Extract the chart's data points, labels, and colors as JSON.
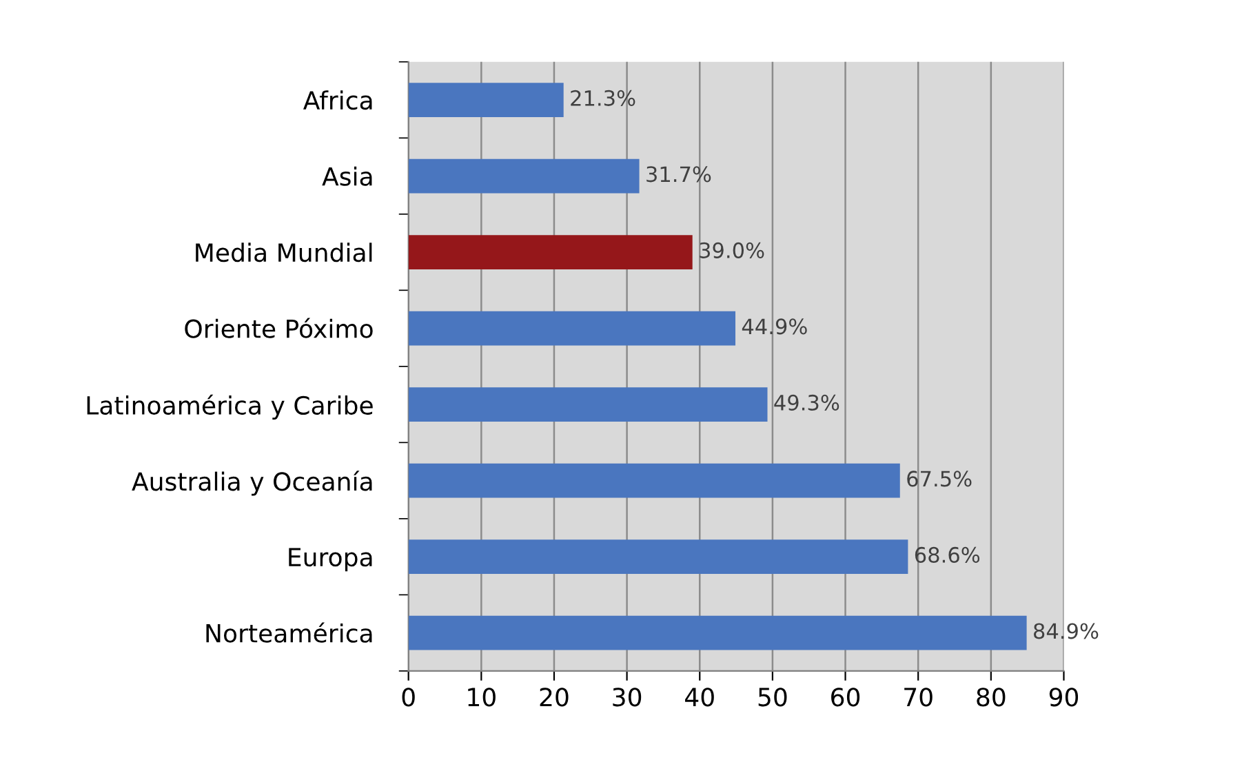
{
  "chart_data": {
    "type": "bar",
    "orientation": "horizontal",
    "categories": [
      "Africa",
      "Asia",
      "Media Mundial",
      "Oriente Póximo",
      "Latinoamérica y Caribe",
      "Australia y Oceanía",
      "Europa",
      "Norteamérica"
    ],
    "values": [
      21.3,
      31.7,
      39.0,
      44.9,
      49.3,
      67.5,
      68.6,
      84.9
    ],
    "value_labels": [
      "21.3%",
      "31.7%",
      "39.0%",
      "44.9%",
      "49.3%",
      "67.5%",
      "68.6%",
      "84.9%"
    ],
    "colors": [
      "#4a76bf",
      "#4a76bf",
      "#95171a",
      "#4a76bf",
      "#4a76bf",
      "#4a76bf",
      "#4a76bf",
      "#4a76bf"
    ],
    "xlim": [
      0,
      90
    ],
    "xticks": [
      0,
      10,
      20,
      30,
      40,
      50,
      60,
      70,
      80,
      90
    ],
    "grid": "x"
  }
}
